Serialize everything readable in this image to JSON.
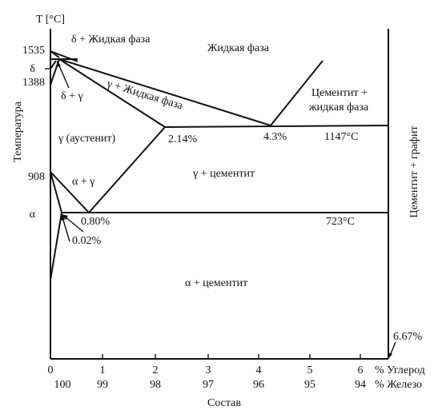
{
  "axes": {
    "y_title": "T [°C]",
    "y_label": "Температура",
    "x_label": "Состав",
    "carbon_unit": "% Углерод",
    "iron_unit": "% Железо",
    "carbon_ticks": [
      "0",
      "1",
      "2",
      "3",
      "4",
      "5",
      "6"
    ],
    "iron_ticks": [
      "100",
      "99",
      "98",
      "97",
      "96",
      "95",
      "94"
    ]
  },
  "temperatures": {
    "t1535": "1535",
    "delta": "δ",
    "t1388": "1388",
    "t908": "908",
    "alpha": "α",
    "t1147": "1147°C",
    "t723": "723°C"
  },
  "compositions": {
    "c214": "2.14%",
    "c43": "4.3%",
    "c080": "0.80%",
    "c002": "0.02%",
    "c667": "6.67%"
  },
  "regions": {
    "delta_liquid": "δ + Жидкая фаза",
    "liquid": "Жидкая фаза",
    "gamma_liquid": "γ + Жидкая фаза",
    "cementite_liquid_1": "Цементит +",
    "cementite_liquid_2": "жидкая фаза",
    "delta_gamma": "δ + γ",
    "austenite": "γ (аустенит)",
    "gamma_cementite": "γ + цементит",
    "alpha_gamma": "α + γ",
    "alpha_cementite": "α + цементит",
    "cementite_graphite": "Цементит + графит"
  }
}
